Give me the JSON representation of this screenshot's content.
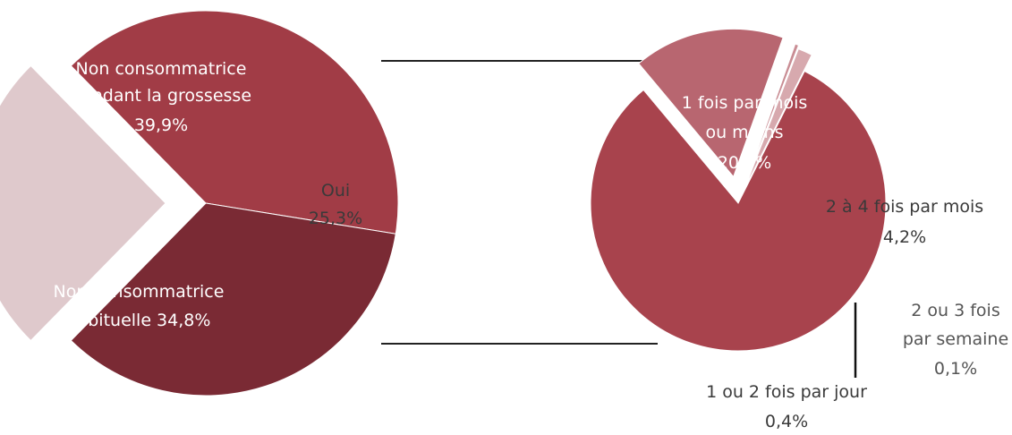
{
  "chart_data": [
    {
      "type": "pie",
      "title": "",
      "slices": [
        {
          "label": "Non consommatrice pendant la grossesse",
          "value": 39.9,
          "value_label": "39,9%",
          "color": "#a13c46"
        },
        {
          "label": "Non consommatrice habituelle",
          "value": 34.8,
          "value_label": "34,8%",
          "color": "#7a2a34"
        },
        {
          "label": "Oui",
          "value": 25.3,
          "value_label": "25,3%",
          "color": "#dfc9cc",
          "exploded": true
        }
      ],
      "labels_text": {
        "pendant_line1": "Non consommatrice",
        "pendant_line2": "pendant la grossesse",
        "pendant_value": "39,9%",
        "habituelle_line1": "Non consommatrice",
        "habituelle_line2": "habituelle 34,8%",
        "oui_line1": "Oui",
        "oui_line2": "25,3%"
      }
    },
    {
      "type": "pie",
      "title": "",
      "breakdown_of": "Oui",
      "slices": [
        {
          "label": "1 fois par mois ou moins",
          "value": 20.7,
          "value_label": "20,7%",
          "color": "#a8434d"
        },
        {
          "label": "2 à 4 fois par mois",
          "value": 4.2,
          "value_label": "4,2%",
          "color": "#b86670",
          "exploded": true
        },
        {
          "label": "2 ou 3 fois par semaine",
          "value": 0.1,
          "value_label": "0,1%",
          "color": "#c98d94",
          "exploded": true
        },
        {
          "label": "1 ou 2 fois par jour",
          "value": 0.4,
          "value_label": "0,4%",
          "color": "#d7a9ae",
          "exploded": true
        }
      ],
      "labels_text": {
        "mois_line1": "1 fois par mois",
        "mois_line2": "ou moins",
        "mois_value": "20,7%",
        "quatre_line1": "2 à 4 fois par mois",
        "quatre_value": "4,2%",
        "semaine_line1": "2 ou 3 fois",
        "semaine_line2": "par semaine",
        "semaine_value": "0,1%",
        "jour_line1": "1 ou 2 fois par jour",
        "jour_value": "0,4%"
      }
    }
  ]
}
